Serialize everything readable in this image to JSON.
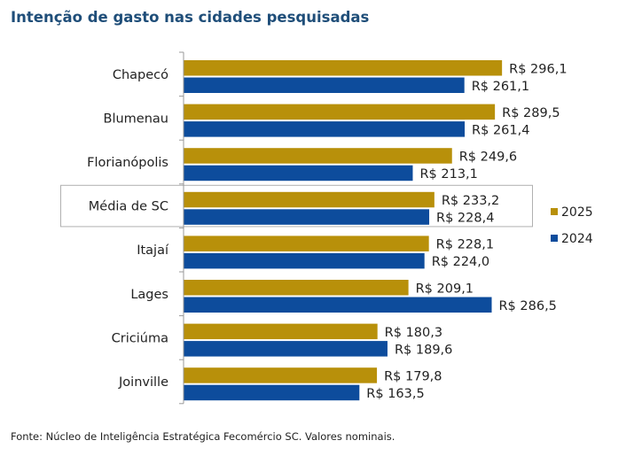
{
  "title": "Intenção de gasto nas cidades pesquisadas",
  "source": "Fonte: Núcleo de Inteligência Estratégica Fecomércio SC. Valores nominais.",
  "colors": {
    "2025": "#b8900a",
    "2024": "#0d4c9c",
    "highlight_border": "#b0b0b0",
    "axis": "#999999"
  },
  "chart_data": {
    "type": "bar",
    "orientation": "horizontal",
    "categories": [
      "Chapecó",
      "Blumenau",
      "Florianópolis",
      "Média de SC",
      "Itajaí",
      "Lages",
      "Criciúma",
      "Joinville"
    ],
    "highlighted_category": "Média de SC",
    "series": [
      {
        "name": "2025",
        "values": [
          296.1,
          289.5,
          249.6,
          233.2,
          228.1,
          209.1,
          180.3,
          179.8
        ],
        "labels": [
          "R$ 296,1",
          "R$ 289,5",
          "R$ 249,6",
          "R$ 233,2",
          "R$ 228,1",
          "R$ 209,1",
          "R$ 180,3",
          "R$ 179,8"
        ]
      },
      {
        "name": "2024",
        "values": [
          261.1,
          261.4,
          213.1,
          228.4,
          224.0,
          286.5,
          189.6,
          163.5
        ],
        "labels": [
          "R$ 261,1",
          "R$ 261,4",
          "R$ 213,1",
          "R$ 228,4",
          "R$ 224,0",
          "R$ 286,5",
          "R$ 189,6",
          "R$ 163,5"
        ]
      }
    ],
    "legend_position": "right",
    "xlim": [
      0,
      310
    ],
    "grid": false
  }
}
